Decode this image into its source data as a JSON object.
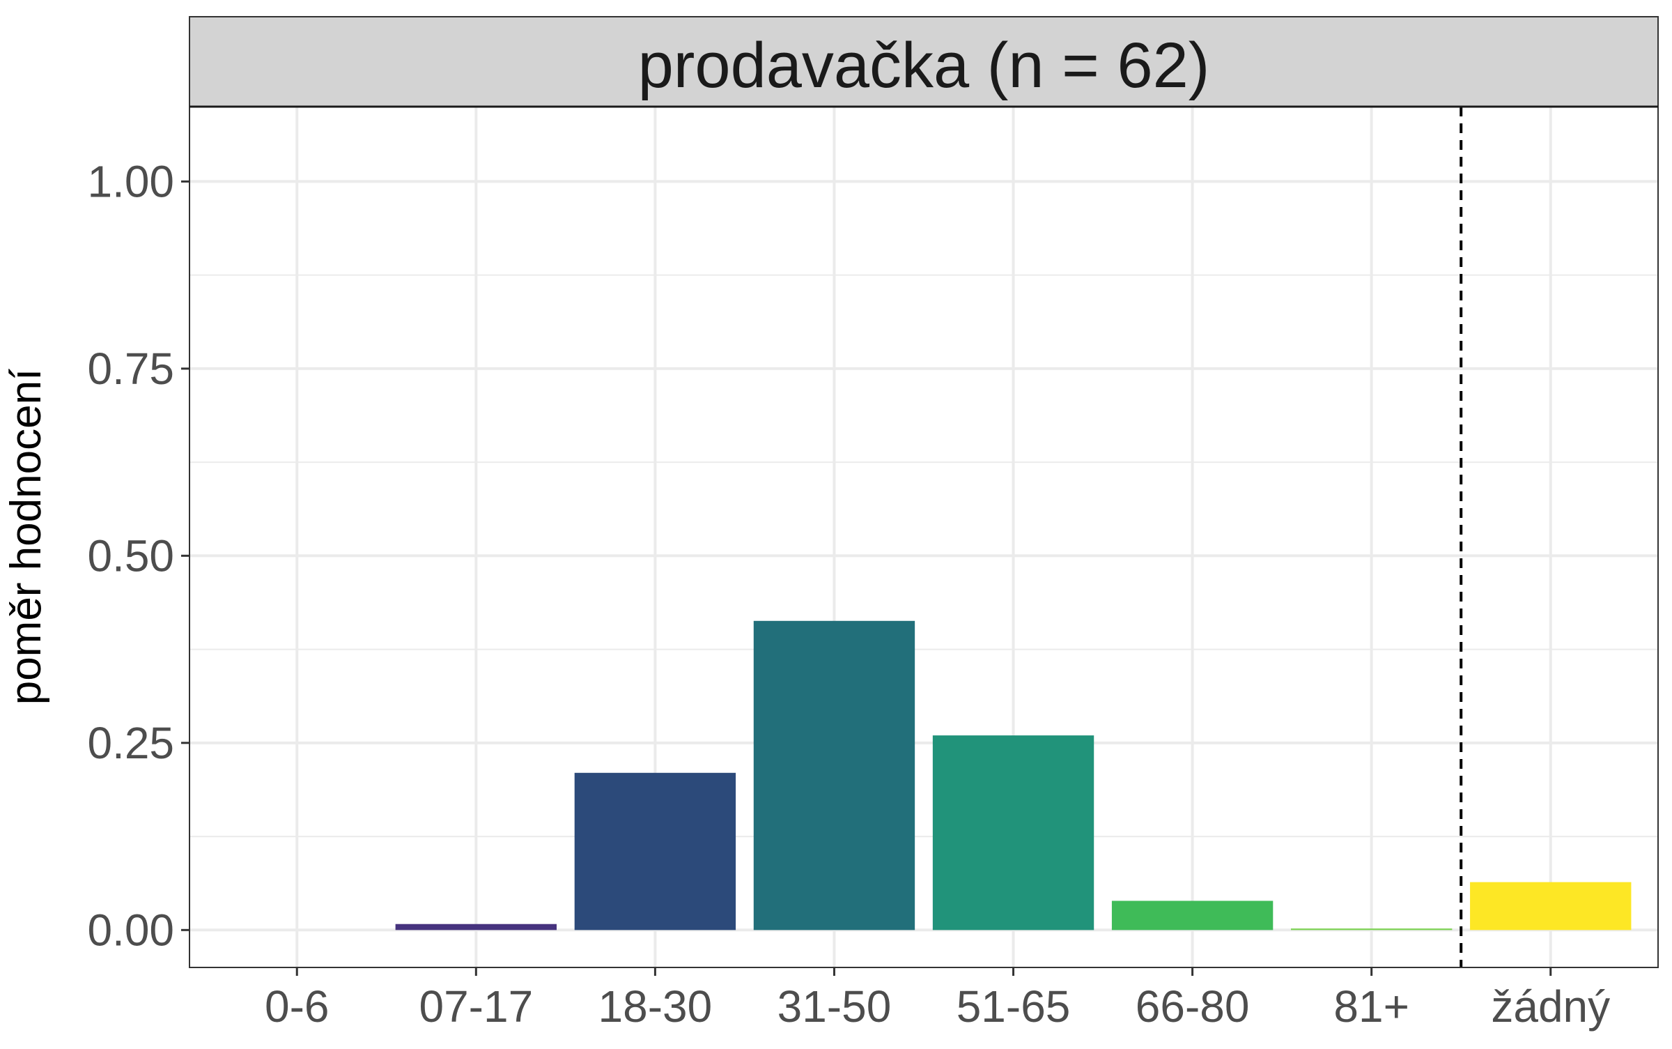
{
  "chart_data": {
    "type": "bar",
    "title": "prodavačka (n = 62)",
    "xlabel": "",
    "ylabel": "poměr hodnocení",
    "categories": [
      "0-6",
      "07-17",
      "18-30",
      "31-50",
      "51-65",
      "66-80",
      "81+",
      "žádný"
    ],
    "values": [
      0.0,
      0.008,
      0.21,
      0.413,
      0.26,
      0.039,
      0.002,
      0.064
    ],
    "colors": [
      "#440154",
      "#46337e",
      "#2c4a7a",
      "#226f7a",
      "#21937a",
      "#3fbb58",
      "#7ad151",
      "#fde725"
    ],
    "ylim": [
      -0.05,
      1.1
    ],
    "yticks": [
      0.0,
      0.25,
      0.5,
      0.75,
      1.0
    ],
    "ytick_labels": [
      "0.00",
      "0.25",
      "0.50",
      "0.75",
      "1.00"
    ],
    "grid": true,
    "legend": "none",
    "reference_line": {
      "after_category": "81+",
      "style": "dashed",
      "color": "#000000"
    },
    "strip_color": "#d3d3d3",
    "grid_color": "#ebebeb"
  }
}
